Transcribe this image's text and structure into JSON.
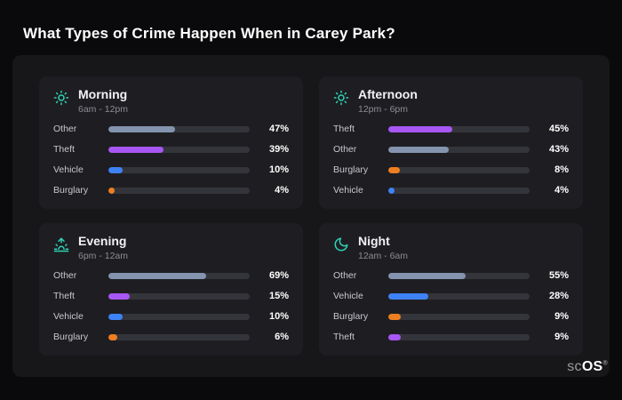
{
  "page_title": "What Types of Crime Happen When in Carey Park?",
  "logo": {
    "prefix": "sc",
    "suffix": "OS",
    "reg": "®"
  },
  "colors": {
    "other": "#8494ae",
    "theft": "#a857f5",
    "vehicle": "#3d82f6",
    "burglary": "#ee7e1f",
    "icon_accent": "#2fd3b5"
  },
  "chart_data": [
    {
      "type": "bar",
      "title": "Morning",
      "subtitle": "6am - 12pm",
      "icon": "sun-icon",
      "unit": "%",
      "xlim": [
        0,
        100
      ],
      "categories": [
        "Other",
        "Theft",
        "Vehicle",
        "Burglary"
      ],
      "values": [
        47,
        39,
        10,
        4
      ]
    },
    {
      "type": "bar",
      "title": "Afternoon",
      "subtitle": "12pm - 6pm",
      "icon": "sun-icon",
      "unit": "%",
      "xlim": [
        0,
        100
      ],
      "categories": [
        "Theft",
        "Other",
        "Burglary",
        "Vehicle"
      ],
      "values": [
        45,
        43,
        8,
        4
      ]
    },
    {
      "type": "bar",
      "title": "Evening",
      "subtitle": "6pm - 12am",
      "icon": "sunset-icon",
      "unit": "%",
      "xlim": [
        0,
        100
      ],
      "categories": [
        "Other",
        "Theft",
        "Vehicle",
        "Burglary"
      ],
      "values": [
        69,
        15,
        10,
        6
      ]
    },
    {
      "type": "bar",
      "title": "Night",
      "subtitle": "12am - 6am",
      "icon": "moon-icon",
      "unit": "%",
      "xlim": [
        0,
        100
      ],
      "categories": [
        "Other",
        "Vehicle",
        "Burglary",
        "Theft"
      ],
      "values": [
        55,
        28,
        9,
        9
      ]
    }
  ]
}
